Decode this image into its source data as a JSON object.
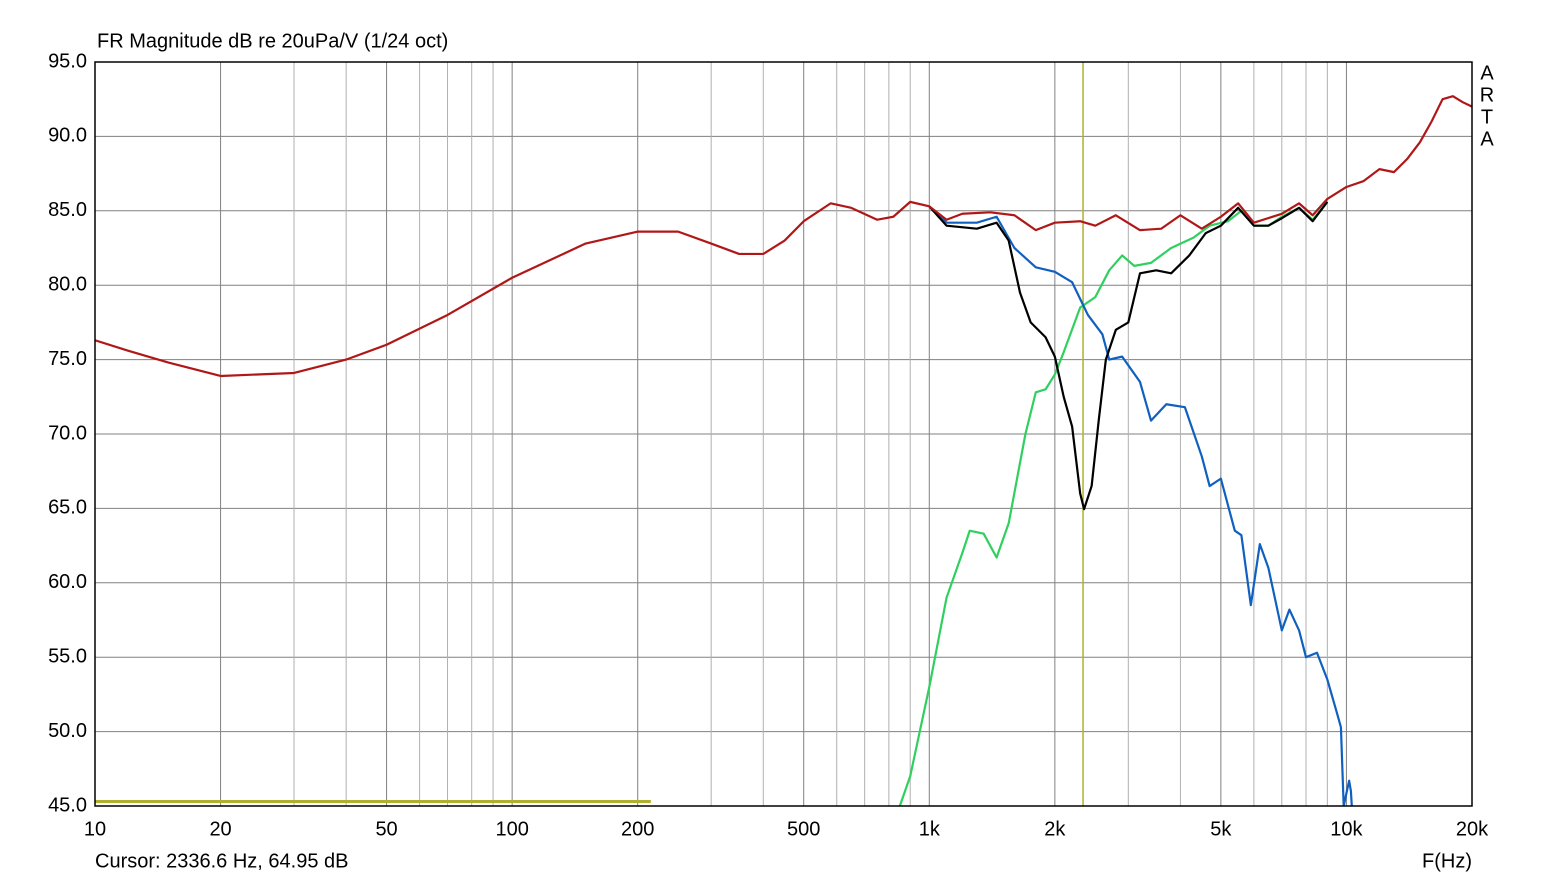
{
  "chart_data": {
    "type": "line",
    "title": "FR Magnitude dB re 20uPa/V (1/24 oct)",
    "x_label": "F(Hz)",
    "cursor_text": "Cursor: 2336.6 Hz, 64.95 dB",
    "cursor_x": 2336.6,
    "cursor_color": "#b0b030",
    "range_bar": {
      "x": [
        10,
        215
      ],
      "y": 45.3,
      "color": "#b0b030"
    },
    "watermark": [
      "A",
      "R",
      "T",
      "A"
    ],
    "log_x": true,
    "grid": true,
    "xlim": [
      10,
      20000
    ],
    "ylim": [
      45,
      95
    ],
    "xticks": [
      {
        "value": 10,
        "label": "10"
      },
      {
        "value": 20,
        "label": "20"
      },
      {
        "value": 50,
        "label": "50"
      },
      {
        "value": 100,
        "label": "100"
      },
      {
        "value": 200,
        "label": "200"
      },
      {
        "value": 500,
        "label": "500"
      },
      {
        "value": 1000,
        "label": "1k"
      },
      {
        "value": 2000,
        "label": "2k"
      },
      {
        "value": 5000,
        "label": "5k"
      },
      {
        "value": 10000,
        "label": "10k"
      },
      {
        "value": 20000,
        "label": "20k"
      }
    ],
    "x_minor_grid": [
      30,
      40,
      60,
      70,
      80,
      90,
      300,
      400,
      600,
      700,
      800,
      900,
      3000,
      4000,
      6000,
      7000,
      8000,
      9000
    ],
    "yticks": [
      {
        "value": 95,
        "label": "95.0"
      },
      {
        "value": 90,
        "label": "90.0"
      },
      {
        "value": 85,
        "label": "85.0"
      },
      {
        "value": 80,
        "label": "80.0"
      },
      {
        "value": 75,
        "label": "75.0"
      },
      {
        "value": 70,
        "label": "70.0"
      },
      {
        "value": 65,
        "label": "65.0"
      },
      {
        "value": 60,
        "label": "60.0"
      },
      {
        "value": 55,
        "label": "55.0"
      },
      {
        "value": 50,
        "label": "50.0"
      },
      {
        "value": 45,
        "label": "45.0"
      }
    ],
    "series": [
      {
        "color": "#30d060",
        "x": [
          850,
          900,
          1000,
          1100,
          1200,
          1250,
          1350,
          1450,
          1550,
          1700,
          1800,
          1900,
          2000,
          2100,
          2300,
          2500,
          2700,
          2900,
          3100,
          3400,
          3800,
          4300,
          4700,
          5200,
          5600,
          6000,
          6500,
          7000,
          7700,
          8300,
          9000
        ],
        "values": [
          45.0,
          47.0,
          53.0,
          59.0,
          62.0,
          63.5,
          63.3,
          61.7,
          64.0,
          70.0,
          72.8,
          73.0,
          74.0,
          75.5,
          78.5,
          79.2,
          81.0,
          82.0,
          81.3,
          81.5,
          82.5,
          83.2,
          84.0,
          84.3,
          85.0,
          84.0,
          84.0,
          84.6,
          85.2,
          84.4,
          85.6
        ]
      },
      {
        "color": "#1060c0",
        "x": [
          1000,
          1100,
          1300,
          1450,
          1600,
          1800,
          2000,
          2200,
          2400,
          2600,
          2700,
          2900,
          3200,
          3400,
          3700,
          4100,
          4500,
          4700,
          5000,
          5400,
          5600,
          5900,
          6200,
          6500,
          7000,
          7300,
          7700,
          8000,
          8500,
          9000,
          9500,
          9700,
          9850,
          10150,
          10250,
          10300
        ],
        "values": [
          85.3,
          84.2,
          84.2,
          84.6,
          82.5,
          81.2,
          80.9,
          80.2,
          78.0,
          76.7,
          75.0,
          75.2,
          73.5,
          70.9,
          72.0,
          71.8,
          68.5,
          66.5,
          67.0,
          63.5,
          63.2,
          58.5,
          62.6,
          61.0,
          56.8,
          58.2,
          56.8,
          55.0,
          55.3,
          53.5,
          51.2,
          50.3,
          45.0,
          46.7,
          46.0,
          45.0
        ]
      },
      {
        "color": "#000000",
        "x": [
          1000,
          1100,
          1300,
          1450,
          1550,
          1650,
          1750,
          1900,
          2000,
          2100,
          2200,
          2300,
          2350,
          2450,
          2550,
          2650,
          2800,
          3000,
          3200,
          3500,
          3800,
          4200,
          4600,
          5000,
          5500,
          6000,
          6500,
          7000,
          7700,
          8300,
          9000
        ],
        "values": [
          85.3,
          84.0,
          83.8,
          84.2,
          83.0,
          79.5,
          77.5,
          76.5,
          75.2,
          72.5,
          70.5,
          66.0,
          64.95,
          66.5,
          71.0,
          75.0,
          77.0,
          77.5,
          80.8,
          81.0,
          80.8,
          82.0,
          83.5,
          84.0,
          85.2,
          84.0,
          84.0,
          84.5,
          85.2,
          84.3,
          85.6
        ]
      },
      {
        "color": "#b01818",
        "x": [
          10,
          12,
          15,
          20,
          30,
          40,
          50,
          70,
          100,
          150,
          200,
          250,
          300,
          350,
          400,
          450,
          500,
          580,
          650,
          750,
          820,
          900,
          1000,
          1100,
          1200,
          1400,
          1600,
          1800,
          2000,
          2300,
          2500,
          2800,
          3200,
          3600,
          4000,
          4500,
          5000,
          5500,
          6000,
          7000,
          7700,
          8300,
          9000,
          10000,
          11000,
          12000,
          13000,
          14000,
          15000,
          16000,
          17000,
          18000,
          19000,
          20000
        ],
        "values": [
          76.3,
          75.6,
          74.8,
          73.9,
          74.1,
          75.0,
          76.0,
          78.0,
          80.5,
          82.8,
          83.6,
          83.6,
          82.8,
          82.1,
          82.1,
          83.0,
          84.3,
          85.5,
          85.2,
          84.4,
          84.6,
          85.6,
          85.3,
          84.4,
          84.8,
          84.9,
          84.7,
          83.7,
          84.2,
          84.3,
          84.0,
          84.7,
          83.7,
          83.8,
          84.7,
          83.8,
          84.6,
          85.5,
          84.2,
          84.8,
          85.5,
          84.7,
          85.8,
          86.6,
          87.0,
          87.8,
          87.6,
          88.5,
          89.6,
          91.0,
          92.5,
          92.7,
          92.3,
          92.0
        ]
      }
    ]
  }
}
